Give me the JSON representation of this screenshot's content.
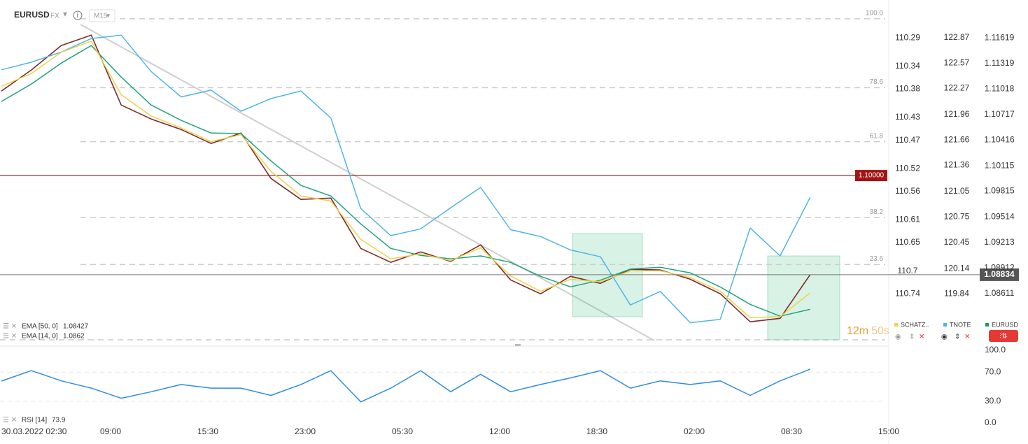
{
  "header": {
    "symbol": "EURUSD",
    "market": "FX",
    "interval": "M15"
  },
  "chart_data": [
    {
      "type": "line",
      "x_labels": [
        "30.03.2022 02:30",
        "09:00",
        "15:30",
        "23:00",
        "05:30",
        "12:00",
        "18:30",
        "02:00",
        "08:30",
        "15:00"
      ],
      "ylim": [
        1.0806,
        1.119
      ],
      "yticks": [
        1.11619,
        1.11319,
        1.11018,
        1.10717,
        1.10416,
        1.10115,
        1.09815,
        1.09514,
        1.09213,
        1.08912,
        1.08611
      ],
      "y2lim": [
        119.29,
        123.15
      ],
      "y2ticks": [
        122.87,
        122.57,
        122.27,
        121.96,
        121.66,
        121.36,
        121.05,
        120.75,
        120.45,
        120.14,
        119.84
      ],
      "y3lim": [
        110.822,
        110.248
      ],
      "y3ticks": [
        110.29,
        110.34,
        110.38,
        110.43,
        110.47,
        110.52,
        110.56,
        110.61,
        110.65,
        110.7,
        110.74
      ],
      "fib_lim": [
        0,
        101.5
      ],
      "fib_levels": [
        {
          "value": 100,
          "label": "100.0"
        },
        78.6,
        61.8,
        38.2,
        23.6
      ],
      "alert_level": {
        "value": 1.1,
        "label": "1.10000"
      },
      "timer": [
        "12m",
        "50s"
      ],
      "hidden_series": [
        {
          "name": "SCHATZ..",
          "color": "#f2d24b",
          "axis": "y3"
        }
      ],
      "series": [
        {
          "name": "EURUSD",
          "color": "#1e9e5e",
          "line_color": "#7d2a2a",
          "axis": "y",
          "values": [
            1.10994,
            1.11241,
            1.11529,
            1.11652,
            1.10829,
            1.10665,
            1.10542,
            1.10377,
            1.105,
            1.09966,
            1.09719,
            1.09735,
            1.09143,
            1.08979,
            1.09102,
            1.0899,
            1.09185,
            1.08773,
            1.08609,
            1.08815,
            1.08732,
            1.08897,
            1.0889,
            1.0878,
            1.0861,
            1.0828,
            1.08321,
            1.08834
          ]
        },
        {
          "name": "TNOTE",
          "color": "#4fb5e6",
          "axis": "y2",
          "values": [
            122.49,
            122.58,
            122.7,
            122.86,
            122.9,
            122.47,
            122.17,
            122.25,
            122.0,
            122.15,
            122.24,
            121.92,
            120.85,
            120.53,
            120.61,
            120.86,
            121.1,
            120.6,
            120.52,
            120.36,
            120.28,
            119.71,
            119.87,
            119.5,
            119.54,
            120.62,
            120.29,
            120.98
          ]
        },
        {
          "name": "EMA [50, 0]",
          "color": "#1fa37c",
          "axis": "y",
          "legend": "indicator",
          "values": [
            1.10871,
            1.11076,
            1.11323,
            1.11529,
            1.11158,
            1.10829,
            1.10649,
            1.105,
            1.10495,
            1.10172,
            1.09884,
            1.0976,
            1.09431,
            1.09143,
            1.09061,
            1.0902,
            1.09055,
            1.08979,
            1.08815,
            1.08691,
            1.0877,
            1.089,
            1.08921,
            1.08856,
            1.0869,
            1.08485,
            1.08346,
            1.08427
          ]
        },
        {
          "name": "EMA [14, 0]",
          "color": "#f0d24a",
          "axis": "y",
          "legend": "indicator",
          "values": [
            1.1105,
            1.112,
            1.1145,
            1.1158,
            1.1095,
            1.107,
            1.1056,
            1.104,
            1.1048,
            1.1005,
            1.0976,
            1.097,
            1.0925,
            1.0902,
            1.0908,
            1.09,
            1.0915,
            1.0882,
            1.0864,
            1.0878,
            1.0875,
            1.0888,
            1.0888,
            1.088,
            1.0864,
            1.0833,
            1.0834,
            1.0862
          ]
        }
      ]
    },
    {
      "type": "line",
      "ylim": [
        0,
        100
      ],
      "yticks": [
        {
          "value": 100,
          "label": "100.0"
        },
        {
          "value": 70,
          "label": "70.0"
        },
        {
          "value": 30,
          "label": "30.0"
        },
        {
          "value": 0,
          "label": "0.0"
        }
      ],
      "series": [
        {
          "name": "RSI [14]",
          "color": "#2f8de4",
          "values": [
            57.7,
            72,
            58,
            48,
            34,
            43,
            53,
            48,
            48,
            38,
            53,
            72,
            29,
            48,
            72,
            43,
            67,
            43,
            53,
            62,
            72,
            48,
            58,
            53,
            58,
            38,
            58,
            73.9
          ]
        }
      ]
    }
  ]
}
